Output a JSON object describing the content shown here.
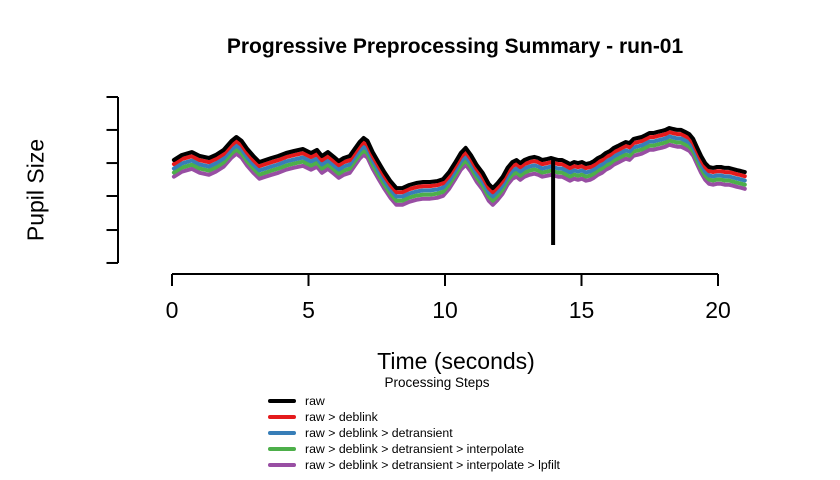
{
  "title": "Progressive Preprocessing Summary - run-01",
  "x_axis": {
    "label": "Time (seconds)",
    "ticks": [
      0,
      5,
      10,
      15,
      20
    ]
  },
  "y_axis": {
    "label": "Pupil Size",
    "tick_labels": []
  },
  "legend": {
    "title": "Processing Steps",
    "items": [
      {
        "label": "raw",
        "color": "#000000"
      },
      {
        "label": "raw > deblink",
        "color": "#E41A1C"
      },
      {
        "label": "raw > deblink > detransient",
        "color": "#377EB8"
      },
      {
        "label": "raw > deblink > detransient > interpolate",
        "color": "#4DAF4A"
      },
      {
        "label": "raw > deblink > detransient > interpolate > lpfilt",
        "color": "#984EA3"
      }
    ]
  },
  "chart_data": {
    "type": "line",
    "title": "Progressive Preprocessing Summary - run-01",
    "xlabel": "Time (seconds)",
    "ylabel": "Pupil Size",
    "xlim": [
      0,
      21.2
    ],
    "x_ticks": [
      0,
      5,
      10,
      15,
      20
    ],
    "y_ticks_unlabeled_positions": [
      0.78,
      2.61,
      4.5,
      6.33,
      8.17,
      10.0
    ],
    "y_units": "arbitrary (y axis has ticks but no numeric labels)",
    "grid": false,
    "legend_position": "bottom-center",
    "base_trace": {
      "t": [
        0.07,
        0.36,
        0.73,
        1.02,
        1.35,
        1.6,
        1.89,
        2.18,
        2.36,
        2.55,
        2.76,
        2.98,
        3.2,
        3.42,
        3.64,
        3.89,
        4.18,
        4.47,
        4.8,
        5.09,
        5.31,
        5.49,
        5.71,
        5.93,
        6.11,
        6.29,
        6.51,
        6.69,
        6.87,
        7.02,
        7.16,
        7.35,
        7.56,
        7.78,
        8.0,
        8.22,
        8.44,
        8.69,
        8.95,
        9.2,
        9.45,
        9.71,
        9.93,
        10.15,
        10.36,
        10.58,
        10.76,
        10.95,
        11.16,
        11.38,
        11.6,
        11.75,
        11.93,
        12.11,
        12.29,
        12.47,
        12.62,
        12.76,
        12.91,
        13.09,
        13.27,
        13.42,
        13.56,
        13.75,
        13.89,
        14.0,
        14.15,
        14.29,
        14.44,
        14.58,
        14.73,
        14.87,
        15.02,
        15.16,
        15.31,
        15.45,
        15.6,
        15.75,
        15.89,
        16.04,
        16.18,
        16.33,
        16.47,
        16.62,
        16.76,
        16.91,
        17.05,
        17.2,
        17.35,
        17.49,
        17.64,
        17.78,
        17.93,
        18.07,
        18.22,
        18.36,
        18.51,
        18.65,
        18.8,
        18.95,
        19.09,
        19.24,
        19.38,
        19.53,
        19.67,
        19.82,
        19.96,
        20.11,
        20.25,
        20.4,
        20.55,
        20.69,
        20.84,
        20.98
      ],
      "y": [
        6.5,
        6.78,
        6.94,
        6.72,
        6.61,
        6.78,
        7.06,
        7.56,
        7.78,
        7.56,
        7.11,
        6.72,
        6.39,
        6.5,
        6.61,
        6.72,
        6.89,
        7.0,
        7.11,
        6.89,
        7.06,
        6.72,
        6.94,
        6.67,
        6.44,
        6.61,
        6.72,
        7.11,
        7.5,
        7.72,
        7.56,
        6.94,
        6.39,
        5.83,
        5.33,
        4.94,
        4.94,
        5.11,
        5.22,
        5.28,
        5.28,
        5.33,
        5.44,
        5.83,
        6.33,
        6.89,
        7.17,
        6.78,
        6.22,
        5.78,
        5.17,
        4.94,
        5.22,
        5.56,
        6.06,
        6.39,
        6.5,
        6.33,
        6.5,
        6.61,
        6.67,
        6.61,
        6.5,
        6.56,
        6.61,
        6.56,
        6.5,
        6.5,
        6.39,
        6.28,
        6.39,
        6.33,
        6.39,
        6.28,
        6.33,
        6.44,
        6.61,
        6.72,
        6.89,
        7.0,
        7.17,
        7.28,
        7.39,
        7.5,
        7.44,
        7.67,
        7.72,
        7.78,
        7.89,
        8.0,
        8.0,
        8.06,
        8.11,
        8.17,
        8.28,
        8.22,
        8.17,
        8.17,
        8.06,
        7.94,
        7.67,
        7.17,
        6.72,
        6.33,
        6.11,
        6.06,
        6.11,
        6.11,
        6.06,
        6.06,
        6.0,
        5.94,
        5.89,
        5.83
      ]
    },
    "series": [
      {
        "name": "raw",
        "color": "#000000",
        "offset": 0,
        "blink_spike": {
          "t": 13.96,
          "y_top": 6.5,
          "y_bottom": 1.78
        }
      },
      {
        "name": "raw > deblink",
        "color": "#E41A1C",
        "offset": -0.23
      },
      {
        "name": "raw > deblink > detransient",
        "color": "#377EB8",
        "offset": -0.47
      },
      {
        "name": "raw > deblink > detransient > interpolate",
        "color": "#4DAF4A",
        "offset": -0.7
      },
      {
        "name": "raw > deblink > detransient > interpolate > lpfilt",
        "color": "#984EA3",
        "offset": -0.93
      }
    ],
    "note": "All five traces share the same pupil waveform, each processing stage drawn with a small constant downward offset; only the raw trace shows the downward blink spike near t = 14 s."
  }
}
